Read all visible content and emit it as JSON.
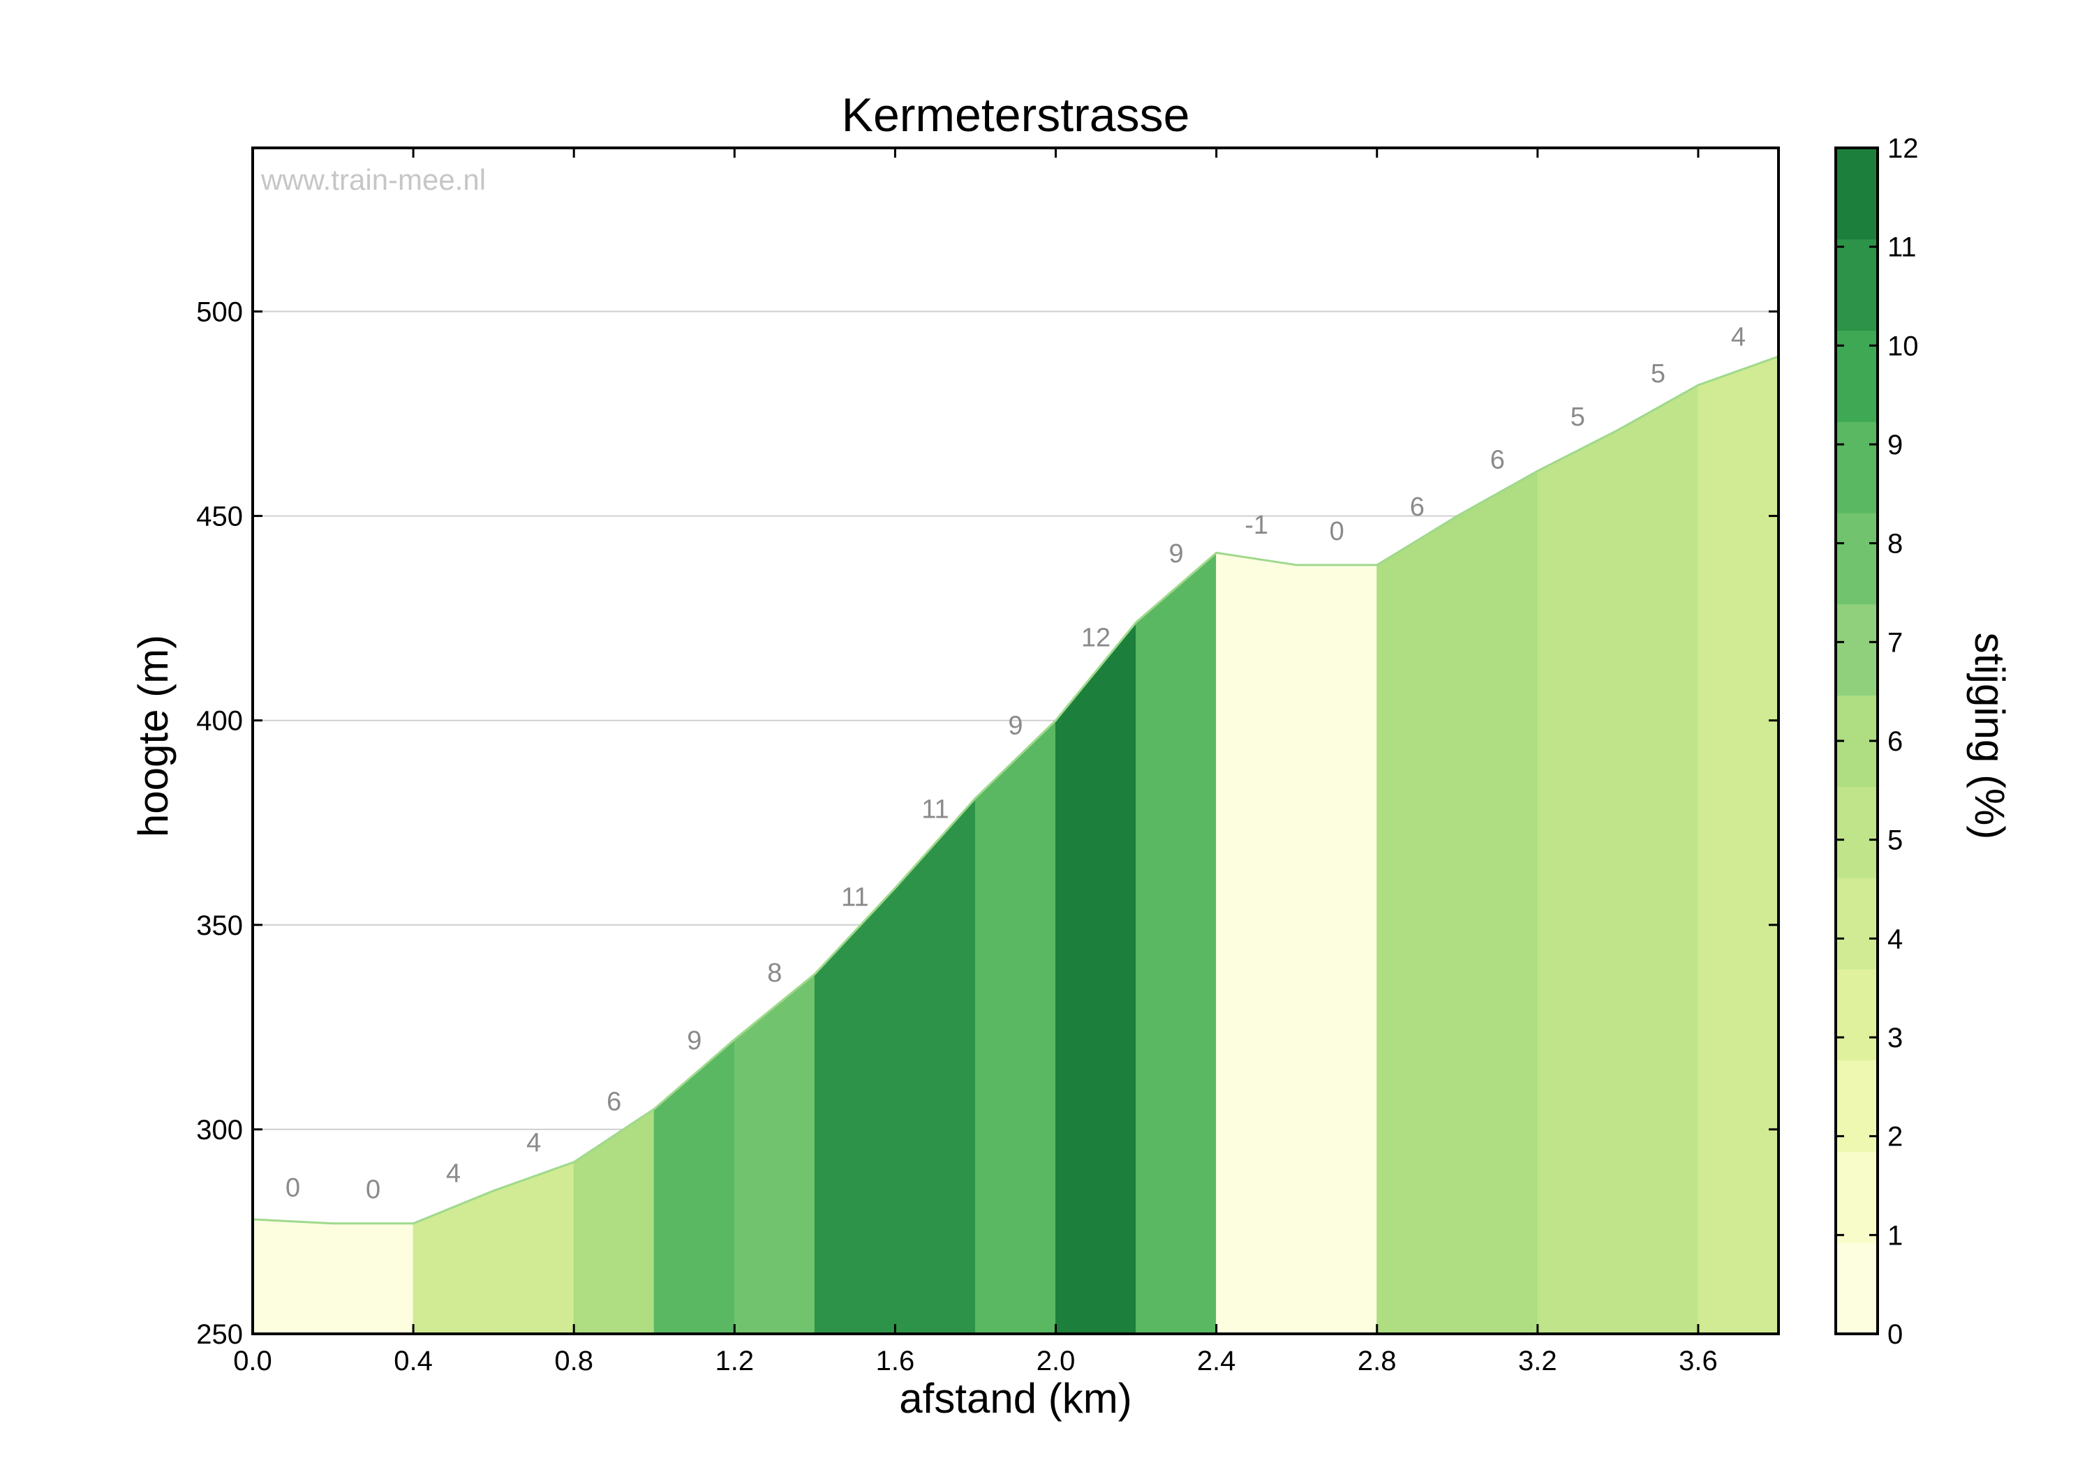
{
  "chart_data": {
    "type": "area",
    "title": "Kermeterstrasse",
    "watermark": "www.train-mee.nl",
    "xlabel": "afstand (km)",
    "ylabel": "hoogte (m)",
    "xlim": [
      0,
      3.8
    ],
    "ylim": [
      250,
      540
    ],
    "x_ticks": [
      "0.0",
      "0.4",
      "0.8",
      "1.2",
      "1.6",
      "2.0",
      "2.4",
      "2.8",
      "3.2",
      "3.6"
    ],
    "y_ticks": [
      "250",
      "300",
      "350",
      "400",
      "450",
      "500"
    ],
    "grid": true,
    "x": [
      0,
      0.2,
      0.4,
      0.6,
      0.8,
      1.0,
      1.2,
      1.4,
      1.6,
      1.8,
      2.0,
      2.2,
      2.4,
      2.6,
      2.8,
      3.0,
      3.2,
      3.4,
      3.6,
      3.8
    ],
    "elevation": [
      278,
      277,
      277,
      285,
      292,
      305,
      322,
      338,
      359,
      381,
      400,
      424,
      441,
      438,
      438,
      450,
      461,
      471,
      482,
      489
    ],
    "segments": [
      {
        "from": 0.0,
        "to": 0.2,
        "gradient": 0,
        "label": "0"
      },
      {
        "from": 0.2,
        "to": 0.4,
        "gradient": 0,
        "label": "0"
      },
      {
        "from": 0.4,
        "to": 0.6,
        "gradient": 4,
        "label": "4"
      },
      {
        "from": 0.6,
        "to": 0.8,
        "gradient": 4,
        "label": "4"
      },
      {
        "from": 0.8,
        "to": 1.0,
        "gradient": 6,
        "label": "6"
      },
      {
        "from": 1.0,
        "to": 1.2,
        "gradient": 9,
        "label": "9"
      },
      {
        "from": 1.2,
        "to": 1.4,
        "gradient": 8,
        "label": "8"
      },
      {
        "from": 1.4,
        "to": 1.6,
        "gradient": 11,
        "label": "11"
      },
      {
        "from": 1.6,
        "to": 1.8,
        "gradient": 11,
        "label": "11"
      },
      {
        "from": 1.8,
        "to": 2.0,
        "gradient": 9,
        "label": "9"
      },
      {
        "from": 2.0,
        "to": 2.2,
        "gradient": 12,
        "label": "12"
      },
      {
        "from": 2.2,
        "to": 2.4,
        "gradient": 9,
        "label": "9"
      },
      {
        "from": 2.4,
        "to": 2.6,
        "gradient": -1,
        "label": "-1"
      },
      {
        "from": 2.6,
        "to": 2.8,
        "gradient": 0,
        "label": "0"
      },
      {
        "from": 2.8,
        "to": 3.0,
        "gradient": 6,
        "label": "6"
      },
      {
        "from": 3.0,
        "to": 3.2,
        "gradient": 6,
        "label": "6"
      },
      {
        "from": 3.2,
        "to": 3.4,
        "gradient": 5,
        "label": "5"
      },
      {
        "from": 3.4,
        "to": 3.6,
        "gradient": 5,
        "label": "5"
      },
      {
        "from": 3.6,
        "to": 3.8,
        "gradient": 4,
        "label": "4"
      }
    ],
    "colorbar": {
      "label": "stijging (%)",
      "range": [
        0,
        12
      ],
      "ticks": [
        "0",
        "1",
        "2",
        "3",
        "4",
        "5",
        "6",
        "7",
        "8",
        "9",
        "10",
        "11",
        "12"
      ],
      "colors": [
        "#fdfde0",
        "#f8fcc9",
        "#eff8b1",
        "#dff19c",
        "#d0eb93",
        "#c0e48a",
        "#aedd82",
        "#90d07c",
        "#71c46d",
        "#5ab862",
        "#3ea854",
        "#2d9348",
        "#1c7f3b"
      ]
    },
    "line_color": "#9fd98c"
  }
}
